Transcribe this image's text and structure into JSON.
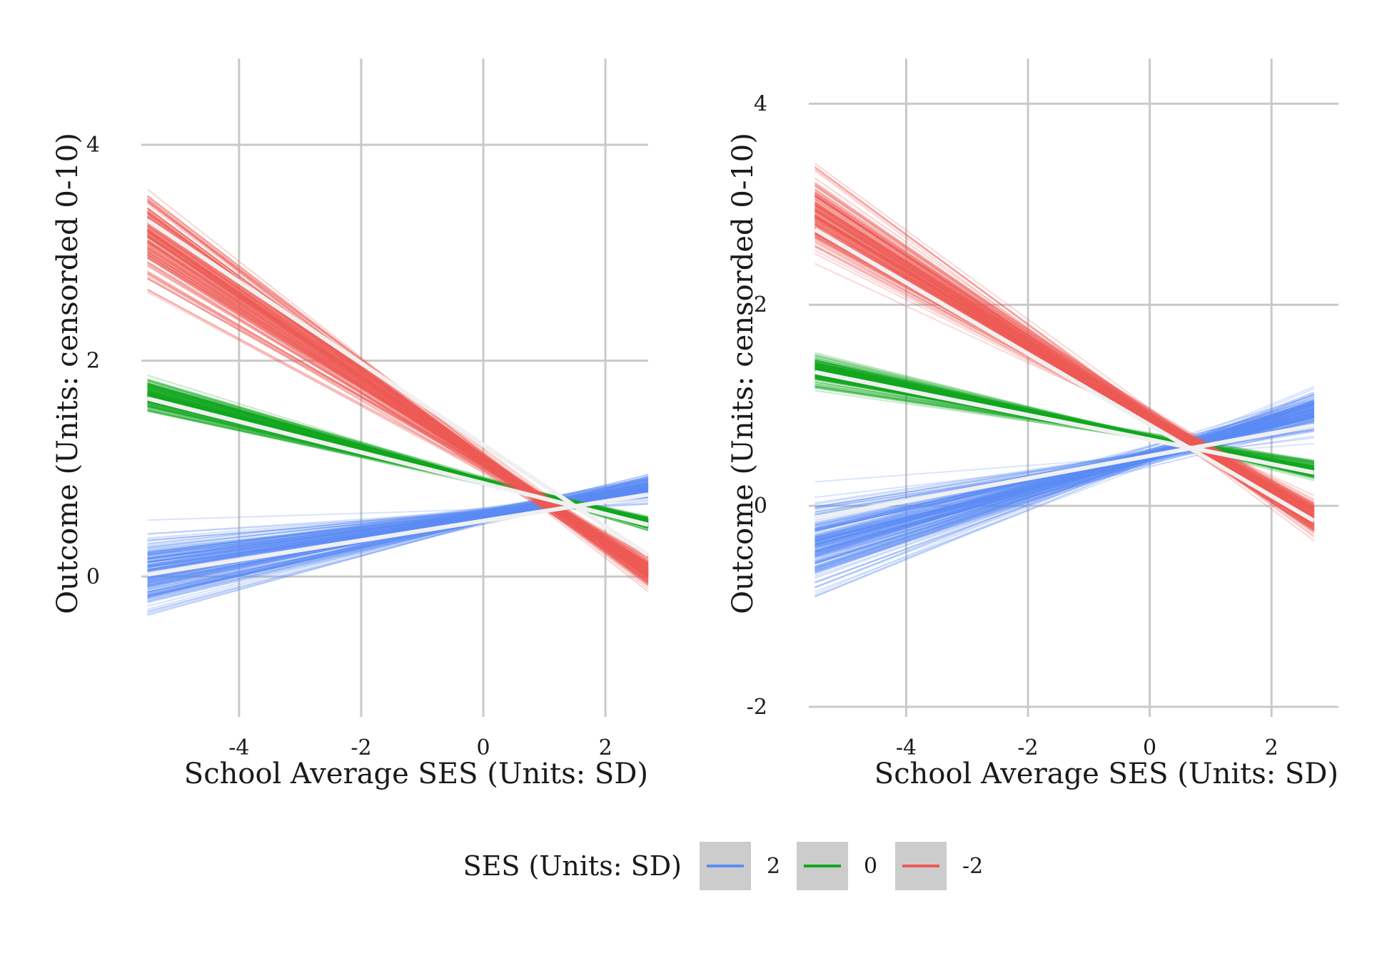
{
  "legend": {
    "title": "SES (Units: SD)",
    "entries": [
      {
        "label": "2",
        "color": "#5C8CF5"
      },
      {
        "label": "0",
        "color": "#13A820"
      },
      {
        "label": "-2",
        "color": "#EE5B55"
      }
    ]
  },
  "chart_data": [
    {
      "type": "line",
      "xlabel": "School Average SES (Units: SD)",
      "ylabel": "Outcome (Units: censorded 0-10)",
      "xlim": [
        -5.6,
        2.7
      ],
      "ylim": [
        -1.3,
        4.8
      ],
      "xticks": [
        -4,
        -2,
        0,
        2
      ],
      "yticks": [
        0,
        2,
        4
      ],
      "grid": true,
      "mean_line_color": "#f0f0f0",
      "series": [
        {
          "name": "-2",
          "color": "#EE5B55",
          "x": [
            -5.5,
            2.7
          ],
          "mean_y": [
            3.3,
            0.2
          ],
          "spread_left": [
            1.55,
            4.75
          ],
          "spread_right": [
            -0.55,
            0.65
          ]
        },
        {
          "name": "0",
          "color": "#13A820",
          "x": [
            -5.5,
            2.7
          ],
          "mean_y": [
            1.65,
            0.48
          ],
          "spread_left": [
            1.15,
            2.2
          ],
          "spread_right": [
            0.25,
            0.75
          ]
        },
        {
          "name": "2",
          "color": "#5C8CF5",
          "x": [
            -5.5,
            2.7
          ],
          "mean_y": [
            0.02,
            0.76
          ],
          "spread_left": [
            -1.25,
            1.3
          ],
          "spread_right": [
            0.3,
            1.35
          ]
        }
      ]
    },
    {
      "type": "line",
      "xlabel": "School Average SES (Units: SD)",
      "ylabel": "Outcome (Units: censorded 0-10)",
      "xlim": [
        -5.6,
        3.1
      ],
      "ylim": [
        -2.1,
        4.45
      ],
      "xticks": [
        -4,
        -2,
        0,
        2
      ],
      "yticks": [
        -2,
        0,
        2,
        4
      ],
      "grid": true,
      "mean_line_color": "#f0f0f0",
      "series": [
        {
          "name": "-2",
          "color": "#EE5B55",
          "x": [
            -5.5,
            2.7
          ],
          "mean_y": [
            2.75,
            -0.15
          ],
          "spread_left": [
            1.55,
            4.3
          ],
          "spread_right": [
            -1.0,
            0.75
          ]
        },
        {
          "name": "0",
          "color": "#13A820",
          "x": [
            -5.5,
            2.7
          ],
          "mean_y": [
            1.33,
            0.33
          ],
          "spread_left": [
            0.8,
            1.9
          ],
          "spread_right": [
            -0.05,
            0.75
          ]
        },
        {
          "name": "2",
          "color": "#5C8CF5",
          "x": [
            -5.5,
            2.7
          ],
          "mean_y": [
            -0.12,
            0.8
          ],
          "spread_left": [
            -1.75,
            1.0
          ],
          "spread_right": [
            0.05,
            1.8
          ]
        }
      ]
    }
  ]
}
